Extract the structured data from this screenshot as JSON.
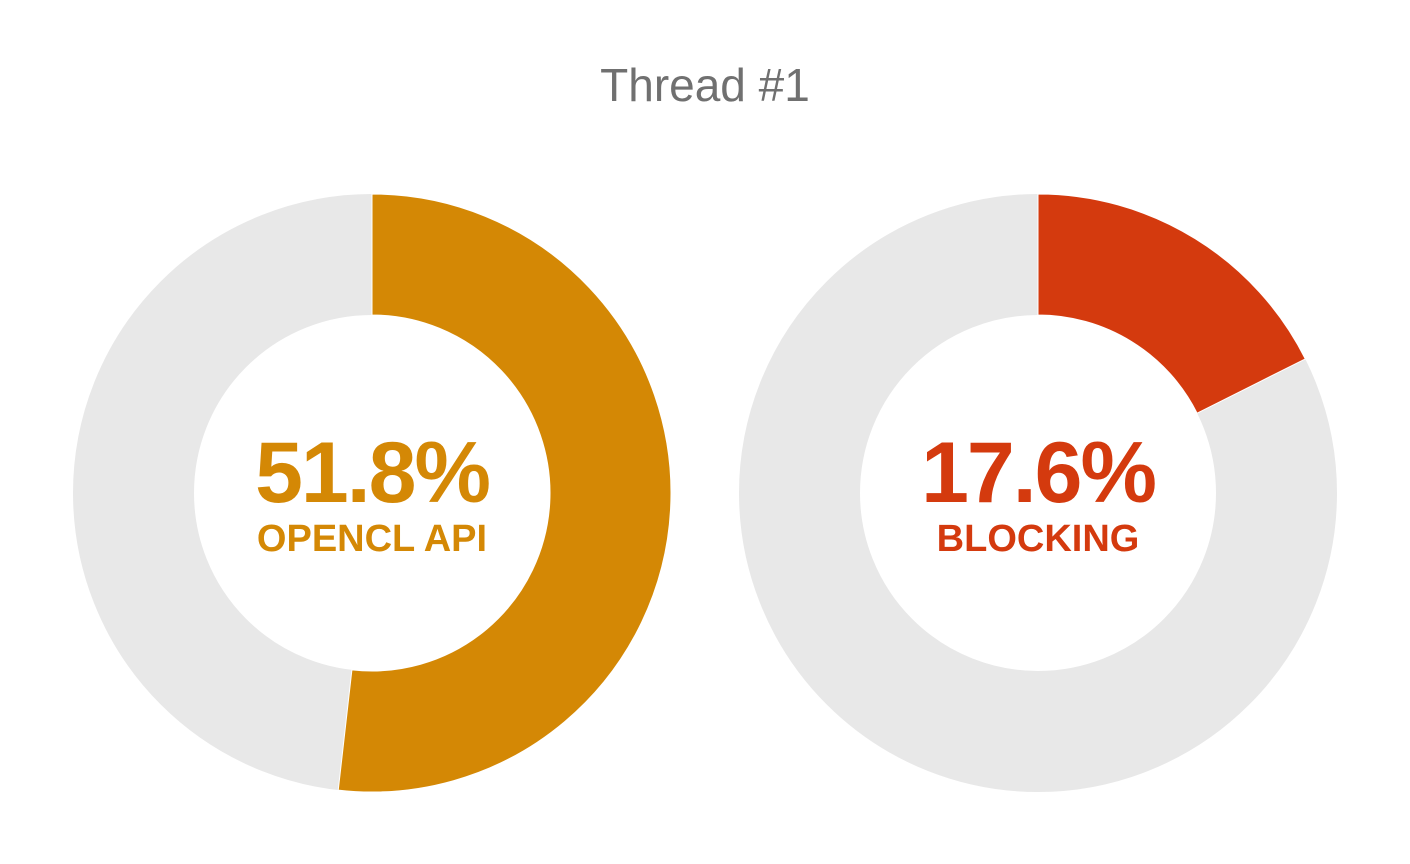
{
  "title": "Thread #1",
  "colors": {
    "track": "#e8e8e8",
    "background": "#ffffff"
  },
  "chart_data": [
    {
      "type": "pie",
      "variant": "donut",
      "value_percent": 51.8,
      "value_label": "51.8%",
      "category_label": "OPENCL API",
      "color": "#d48805"
    },
    {
      "type": "pie",
      "variant": "donut",
      "value_percent": 17.6,
      "value_label": "17.6%",
      "category_label": "BLOCKING",
      "color": "#d43a0e"
    }
  ]
}
